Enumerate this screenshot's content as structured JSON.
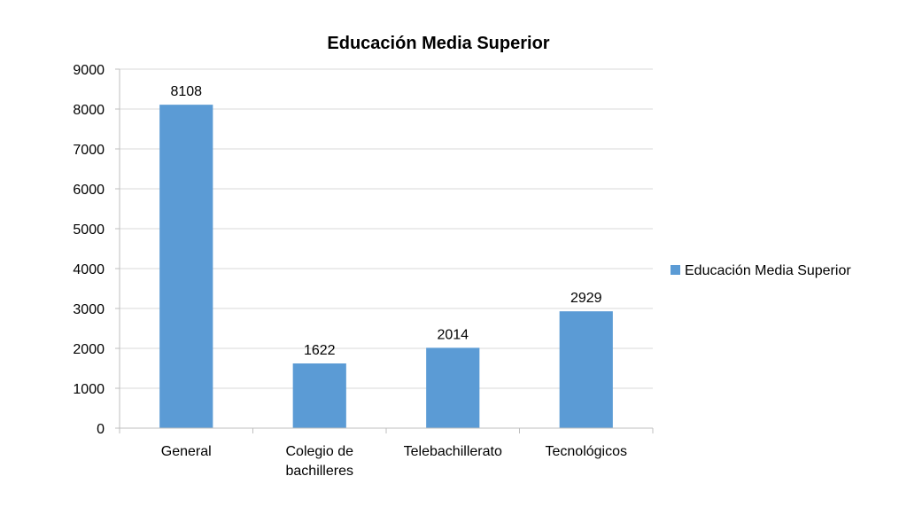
{
  "chart_data": {
    "type": "bar",
    "title": "Educación Media Superior",
    "xlabel": "",
    "ylabel": "",
    "categories": [
      [
        "General"
      ],
      [
        "Colegio de",
        "bachilleres"
      ],
      [
        "Telebachillerato"
      ],
      [
        "Tecnológicos"
      ]
    ],
    "series": [
      {
        "name": "Educación Media Superior",
        "values": [
          8108,
          1622,
          2014,
          2929
        ],
        "color": "#5b9bd5"
      }
    ],
    "data_labels": [
      "8108",
      "1622",
      "2014",
      "2929"
    ],
    "ylim": [
      0,
      9000
    ],
    "y_ticks": [
      0,
      1000,
      2000,
      3000,
      4000,
      5000,
      6000,
      7000,
      8000,
      9000
    ],
    "grid": true,
    "legend_position": "right"
  }
}
